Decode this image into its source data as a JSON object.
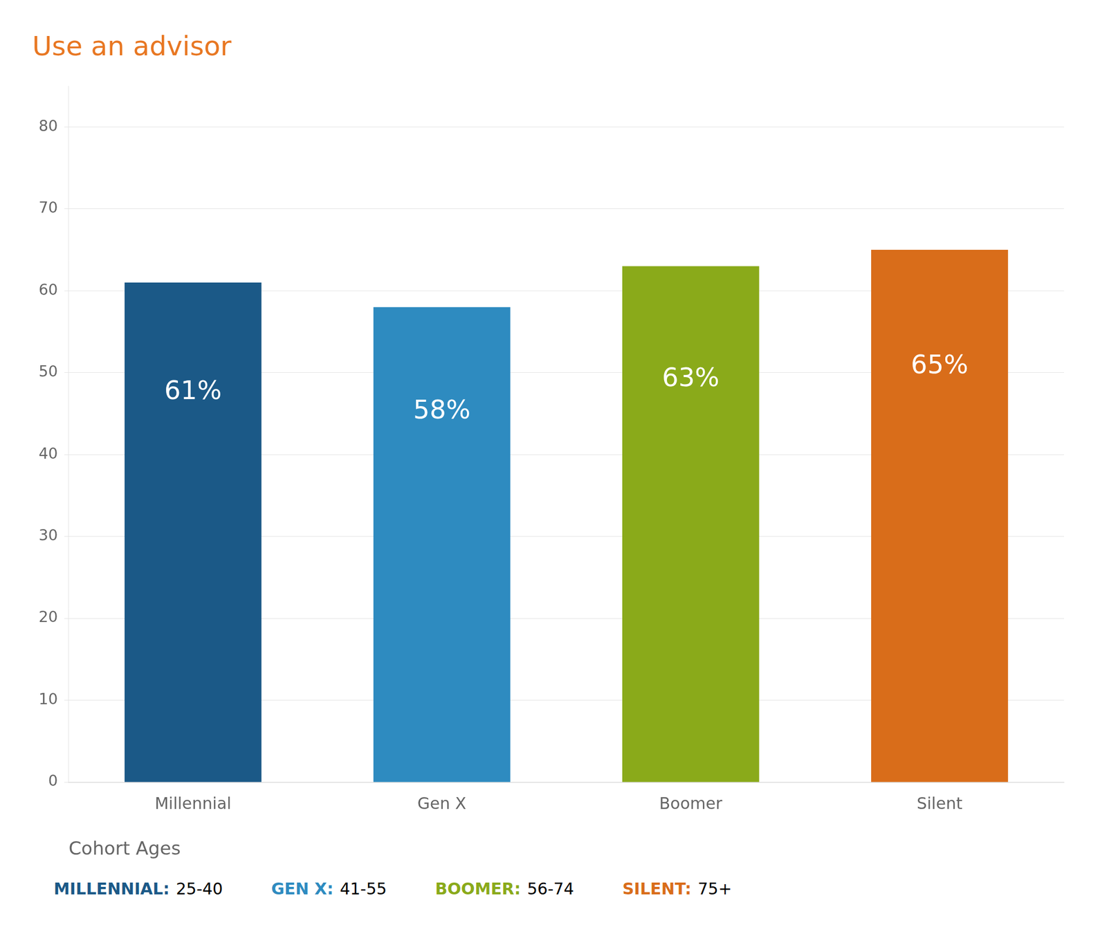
{
  "chart_data": {
    "type": "bar",
    "title": "Use an advisor",
    "xlabel": "Cohort Ages",
    "categories": [
      "Millennial",
      "Gen X",
      "Boomer",
      "Silent"
    ],
    "values": [
      61,
      58,
      63,
      65
    ],
    "value_labels": [
      "61%",
      "58%",
      "63%",
      "65%"
    ],
    "data_labels": true,
    "colors": [
      "#1b5987",
      "#2e8bc0",
      "#8aaa1a",
      "#d96d1a"
    ],
    "ylim": [
      0,
      85
    ],
    "yticks": [
      0,
      10,
      20,
      30,
      40,
      50,
      60,
      70,
      80
    ],
    "grid": true,
    "annotations": [
      {
        "label": "MILLENNIAL:",
        "text": "25-40",
        "color": "#1b5987"
      },
      {
        "label": "GEN X:",
        "text": "41-55",
        "color": "#2e8bc0"
      },
      {
        "label": "BOOMER:",
        "text": "56-74",
        "color": "#8aaa1a"
      },
      {
        "label": "SILENT:",
        "text": "75+",
        "color": "#d96d1a"
      }
    ]
  }
}
